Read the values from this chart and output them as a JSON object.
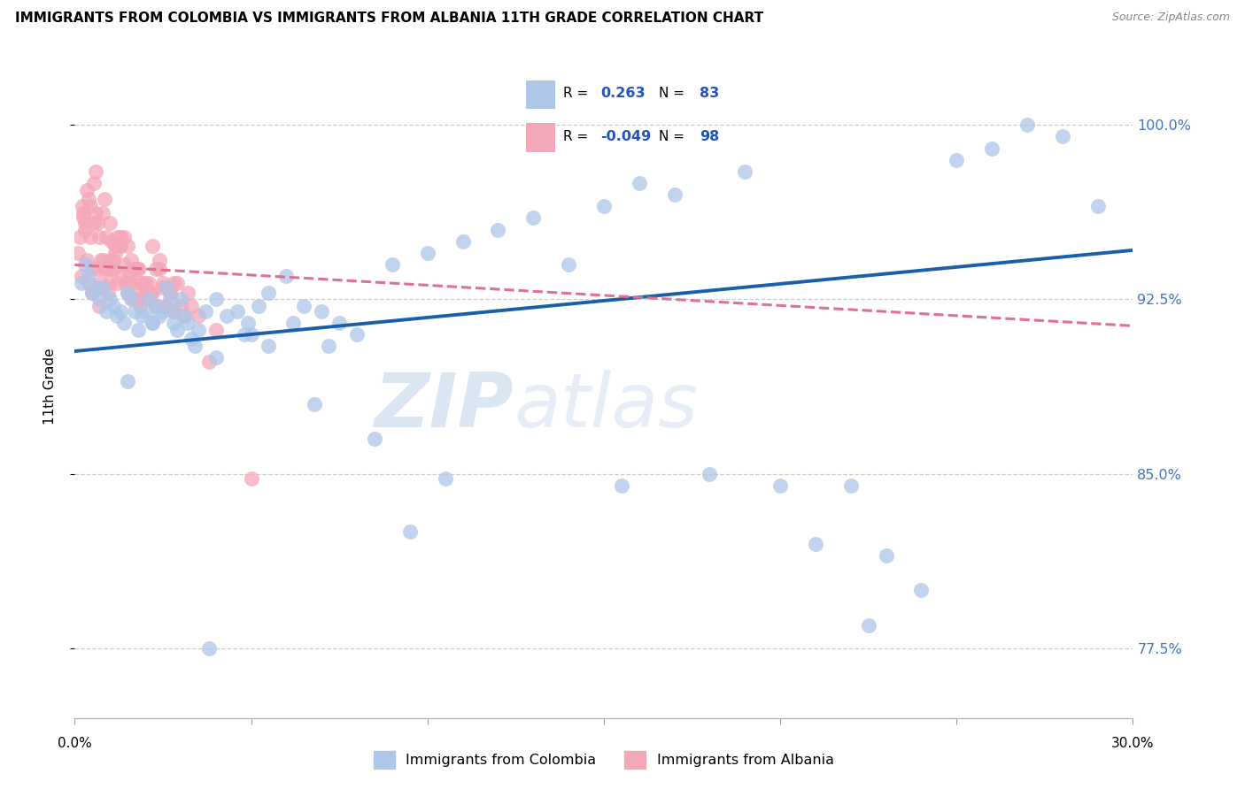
{
  "title": "IMMIGRANTS FROM COLOMBIA VS IMMIGRANTS FROM ALBANIA 11TH GRADE CORRELATION CHART",
  "source": "Source: ZipAtlas.com",
  "ylabel": "11th Grade",
  "xlim": [
    0.0,
    30.0
  ],
  "ylim": [
    74.5,
    103.0
  ],
  "yticks": [
    77.5,
    85.0,
    92.5,
    100.0
  ],
  "ytick_labels": [
    "77.5%",
    "85.0%",
    "92.5%",
    "100.0%"
  ],
  "xtick_positions": [
    0,
    5,
    10,
    15,
    20,
    25,
    30
  ],
  "colombia_R": 0.263,
  "colombia_N": 83,
  "albania_R": -0.049,
  "albania_N": 98,
  "colombia_color": "#aec6e8",
  "albania_color": "#f4a7b9",
  "colombia_trend_color": "#1a5fa8",
  "albania_trend_color": "#e07090",
  "legend_label_colombia": "Immigrants from Colombia",
  "legend_label_albania": "Immigrants from Albania",
  "watermark_zip": "ZIP",
  "watermark_atlas": "atlas",
  "colombia_x": [
    0.2,
    0.3,
    0.4,
    0.5,
    0.6,
    0.7,
    0.8,
    0.9,
    1.0,
    1.1,
    1.2,
    1.3,
    1.4,
    1.5,
    1.6,
    1.7,
    1.8,
    1.9,
    2.0,
    2.1,
    2.2,
    2.3,
    2.4,
    2.5,
    2.6,
    2.7,
    2.8,
    2.9,
    3.0,
    3.1,
    3.2,
    3.3,
    3.5,
    3.7,
    4.0,
    4.3,
    4.6,
    4.9,
    5.2,
    5.5,
    6.0,
    6.5,
    7.0,
    7.5,
    8.0,
    9.0,
    10.0,
    11.0,
    12.0,
    13.0,
    14.0,
    15.0,
    17.0,
    19.0,
    20.0,
    21.0,
    22.0,
    23.0,
    24.0,
    25.0,
    26.0,
    27.0,
    28.0,
    29.0,
    1.5,
    2.2,
    2.8,
    3.4,
    4.0,
    4.8,
    5.5,
    6.2,
    7.2,
    8.5,
    10.5,
    15.5,
    18.0,
    22.5,
    3.8,
    5.0,
    6.8,
    9.5,
    16.0
  ],
  "colombia_y": [
    93.2,
    94.0,
    93.5,
    92.8,
    93.0,
    92.5,
    93.0,
    92.0,
    92.5,
    92.2,
    91.8,
    92.0,
    91.5,
    92.8,
    92.5,
    92.0,
    91.2,
    91.8,
    92.0,
    92.5,
    91.5,
    92.2,
    91.8,
    92.0,
    93.0,
    92.5,
    91.5,
    91.2,
    92.5,
    91.8,
    91.5,
    90.8,
    91.2,
    92.0,
    92.5,
    91.8,
    92.0,
    91.5,
    92.2,
    92.8,
    93.5,
    92.2,
    92.0,
    91.5,
    91.0,
    94.0,
    94.5,
    95.0,
    95.5,
    96.0,
    94.0,
    96.5,
    97.0,
    98.0,
    84.5,
    82.0,
    84.5,
    81.5,
    80.0,
    98.5,
    99.0,
    100.0,
    99.5,
    96.5,
    89.0,
    91.5,
    92.0,
    90.5,
    90.0,
    91.0,
    90.5,
    91.5,
    90.5,
    86.5,
    84.8,
    84.5,
    85.0,
    78.5,
    77.5,
    91.0,
    88.0,
    82.5,
    97.5
  ],
  "albania_x": [
    0.1,
    0.15,
    0.2,
    0.25,
    0.3,
    0.35,
    0.4,
    0.45,
    0.5,
    0.55,
    0.6,
    0.65,
    0.7,
    0.75,
    0.8,
    0.85,
    0.9,
    0.95,
    1.0,
    1.05,
    1.1,
    1.15,
    1.2,
    1.25,
    1.3,
    1.35,
    1.4,
    1.45,
    1.5,
    1.55,
    1.6,
    1.65,
    1.7,
    1.75,
    1.8,
    1.85,
    1.9,
    1.95,
    2.0,
    2.1,
    2.2,
    2.3,
    2.4,
    2.5,
    2.6,
    2.7,
    2.8,
    2.9,
    3.0,
    3.2,
    3.5,
    0.5,
    0.8,
    1.0,
    1.2,
    1.5,
    1.8,
    2.0,
    2.2,
    2.5,
    0.3,
    0.6,
    0.9,
    1.1,
    1.4,
    1.7,
    2.1,
    2.4,
    2.8,
    3.1,
    0.4,
    0.7,
    1.0,
    1.3,
    1.6,
    1.9,
    2.3,
    2.7,
    4.0,
    5.0,
    0.35,
    0.65,
    1.15,
    1.45,
    0.75,
    1.25,
    0.55,
    1.05,
    1.55,
    0.25,
    0.45,
    0.85,
    2.15,
    1.85,
    2.55,
    3.3,
    3.8,
    0.22
  ],
  "albania_y": [
    94.5,
    95.2,
    93.5,
    96.0,
    95.5,
    97.2,
    93.2,
    96.5,
    92.8,
    97.5,
    98.0,
    95.8,
    92.2,
    94.2,
    96.2,
    93.8,
    95.2,
    92.8,
    94.2,
    95.0,
    93.8,
    94.5,
    93.2,
    94.8,
    95.2,
    93.5,
    94.0,
    93.2,
    92.8,
    93.5,
    93.2,
    92.5,
    93.8,
    92.5,
    93.8,
    92.2,
    93.2,
    92.5,
    93.0,
    93.2,
    92.8,
    92.2,
    93.8,
    93.0,
    92.2,
    92.8,
    92.0,
    93.2,
    92.2,
    92.8,
    91.8,
    93.8,
    94.2,
    93.2,
    95.2,
    94.8,
    93.8,
    93.2,
    94.8,
    93.2,
    95.8,
    96.2,
    93.8,
    94.2,
    95.2,
    93.8,
    92.8,
    94.2,
    93.2,
    91.8,
    96.8,
    95.2,
    95.8,
    94.8,
    94.2,
    93.2,
    93.8,
    92.8,
    91.2,
    84.8,
    94.2,
    93.8,
    94.8,
    93.2,
    93.2,
    94.8,
    95.8,
    93.8,
    93.2,
    96.2,
    95.2,
    96.8,
    92.8,
    92.8,
    92.2,
    92.2,
    89.8,
    96.5
  ]
}
